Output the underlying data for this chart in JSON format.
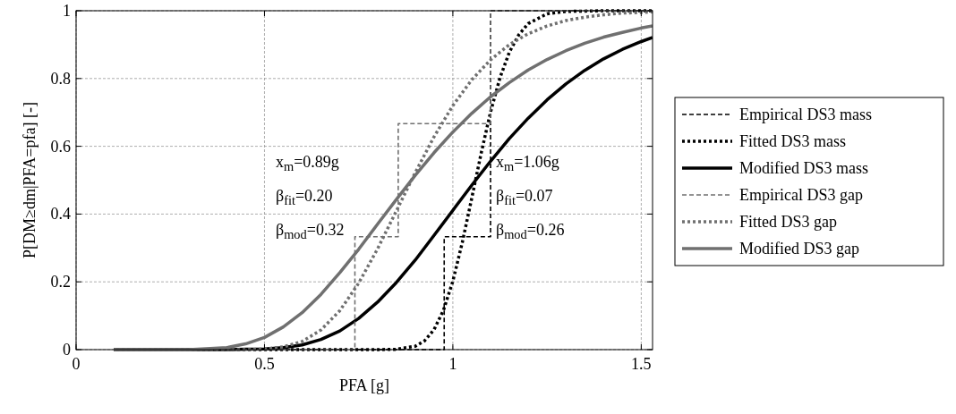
{
  "chart_data": {
    "type": "line",
    "xlabel": "PFA [g]",
    "ylabel": "P[DM≥dm|PFA=pfa] [-]",
    "xlim": [
      0,
      1.53
    ],
    "ylim": [
      0,
      1
    ],
    "xticks": [
      0,
      0.5,
      1,
      1.5
    ],
    "yticks": [
      0,
      0.2,
      0.4,
      0.6,
      0.8,
      1
    ],
    "grid": true,
    "legend": "right",
    "series": [
      {
        "name": "Empirical DS3 mass",
        "type": "step",
        "color": "#000000",
        "line_style": "dashed",
        "x": [
          0.1,
          0.977,
          1.1,
          1.53
        ],
        "values": [
          0,
          0.333,
          1,
          1
        ]
      },
      {
        "name": "Fitted DS3 mass",
        "color": "#000000",
        "line_style": "dotted",
        "x": [
          0.1,
          0.8,
          0.85,
          0.9,
          0.925,
          0.95,
          0.975,
          1.0,
          1.025,
          1.05,
          1.075,
          1.1,
          1.125,
          1.15,
          1.175,
          1.2,
          1.25,
          1.3,
          1.4,
          1.53
        ],
        "values": [
          0,
          0,
          0.001,
          0.01,
          0.026,
          0.059,
          0.116,
          0.202,
          0.316,
          0.446,
          0.579,
          0.701,
          0.802,
          0.878,
          0.929,
          0.962,
          0.991,
          0.998,
          1,
          1
        ]
      },
      {
        "name": "Modified DS3 mass",
        "color": "#000000",
        "line_style": "solid",
        "x": [
          0.1,
          0.3,
          0.4,
          0.45,
          0.5,
          0.55,
          0.6,
          0.65,
          0.7,
          0.75,
          0.8,
          0.85,
          0.9,
          0.95,
          1.0,
          1.05,
          1.1,
          1.15,
          1.2,
          1.25,
          1.3,
          1.35,
          1.4,
          1.45,
          1.5,
          1.53
        ],
        "values": [
          0,
          0,
          0,
          0.001,
          0.002,
          0.006,
          0.014,
          0.03,
          0.055,
          0.092,
          0.14,
          0.198,
          0.264,
          0.337,
          0.411,
          0.485,
          0.556,
          0.623,
          0.683,
          0.737,
          0.784,
          0.824,
          0.858,
          0.886,
          0.909,
          0.921
        ]
      },
      {
        "name": "Empirical DS3 gap",
        "type": "step",
        "color": "#707070",
        "line_style": "dashed",
        "x": [
          0.1,
          0.74,
          0.855,
          1.1,
          1.53
        ],
        "values": [
          0,
          0.333,
          0.667,
          1,
          1
        ]
      },
      {
        "name": "Fitted DS3 gap",
        "color": "#707070",
        "line_style": "dotted",
        "x": [
          0.1,
          0.3,
          0.4,
          0.45,
          0.5,
          0.55,
          0.6,
          0.65,
          0.7,
          0.75,
          0.8,
          0.85,
          0.9,
          0.95,
          1.0,
          1.05,
          1.1,
          1.15,
          1.2,
          1.25,
          1.3,
          1.35,
          1.4,
          1.45,
          1.5,
          1.53
        ],
        "values": [
          0,
          0,
          0,
          0,
          0.002,
          0.008,
          0.024,
          0.058,
          0.115,
          0.196,
          0.297,
          0.409,
          0.522,
          0.628,
          0.72,
          0.796,
          0.855,
          0.9,
          0.932,
          0.955,
          0.971,
          0.981,
          0.988,
          0.993,
          0.995,
          0.997
        ]
      },
      {
        "name": "Modified DS3 gap",
        "color": "#707070",
        "line_style": "solid",
        "x": [
          0.1,
          0.3,
          0.4,
          0.45,
          0.5,
          0.55,
          0.6,
          0.65,
          0.7,
          0.75,
          0.8,
          0.85,
          0.9,
          0.95,
          1.0,
          1.05,
          1.1,
          1.15,
          1.2,
          1.25,
          1.3,
          1.35,
          1.4,
          1.45,
          1.5,
          1.53
        ],
        "values": [
          0,
          0,
          0.006,
          0.017,
          0.036,
          0.067,
          0.109,
          0.163,
          0.227,
          0.296,
          0.37,
          0.443,
          0.514,
          0.581,
          0.642,
          0.697,
          0.746,
          0.788,
          0.825,
          0.856,
          0.882,
          0.904,
          0.922,
          0.936,
          0.949,
          0.955
        ]
      }
    ],
    "annotations": [
      "x$_{m}$=0.89g",
      "β$_{fit}$=0.20",
      "β$_{mod}$=0.32",
      "x$_{m}$=1.06g",
      "β$_{fit}$=0.07",
      "β$_{mod}$=0.26"
    ]
  }
}
